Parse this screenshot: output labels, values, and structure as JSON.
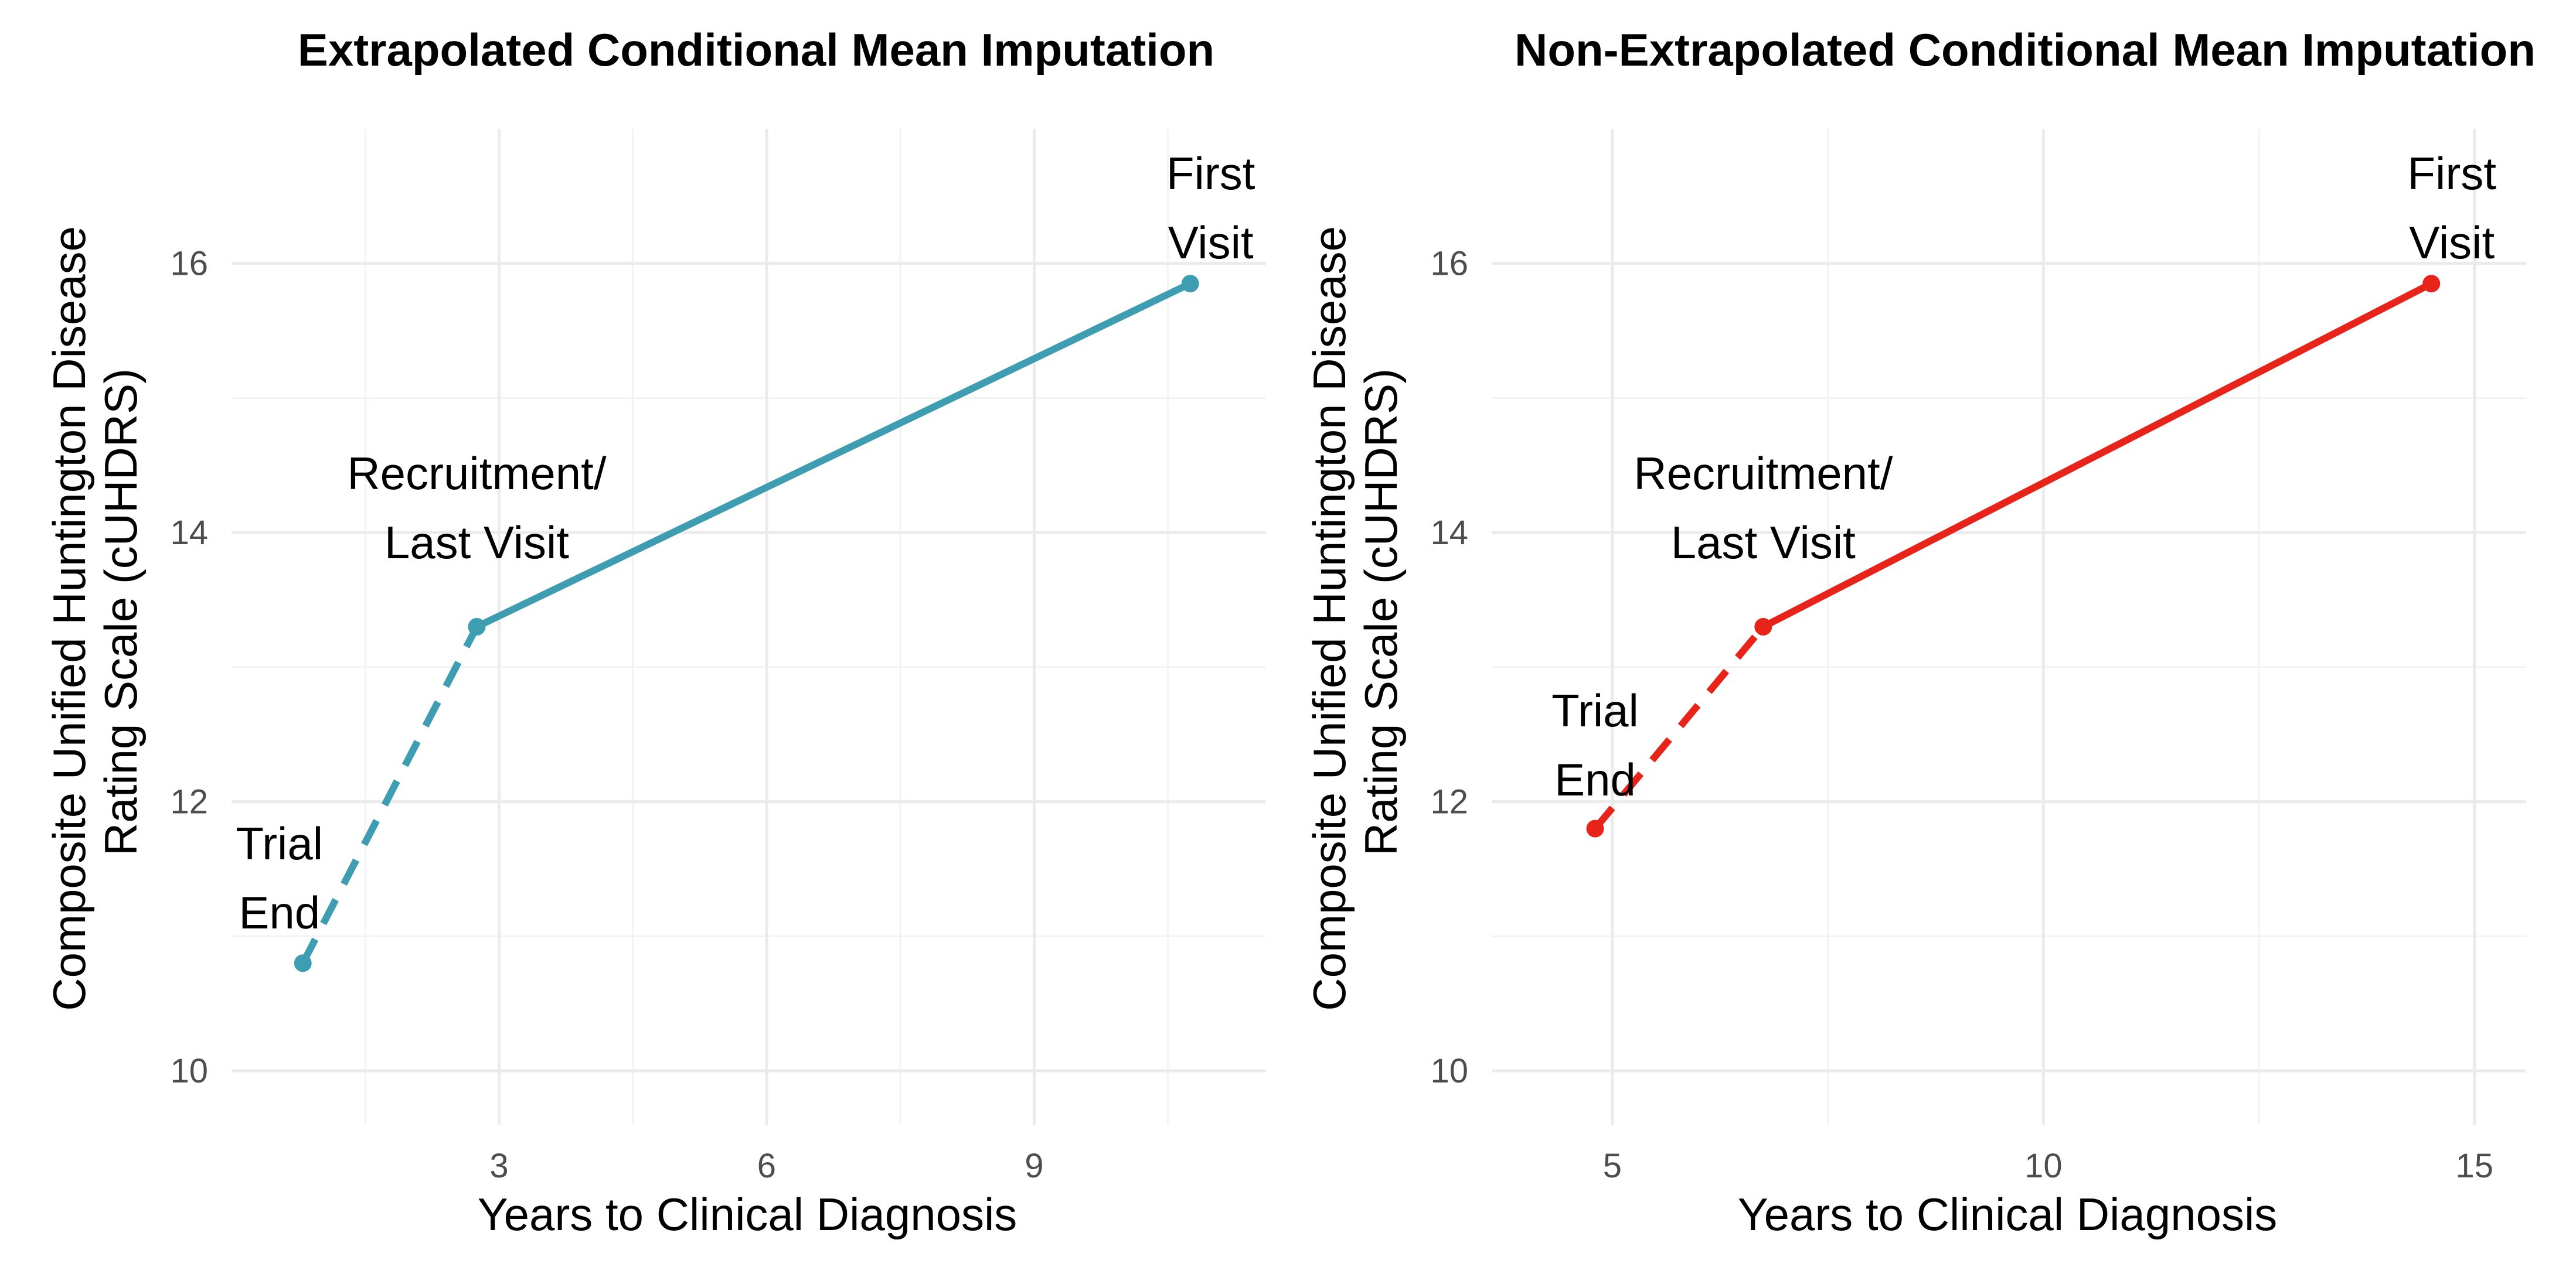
{
  "chart_data": [
    {
      "type": "line",
      "title": "Extrapolated Conditional Mean Imputation",
      "xlabel": "Years to Clinical Diagnosis",
      "ylabel": "Composite Unified Huntington Disease Rating Scale (cUHDRS)",
      "ylabel_lines": [
        "Composite Unified Huntington Disease",
        "Rating Scale (cUHDRS)"
      ],
      "xlim": [
        0.0,
        11.6
      ],
      "ylim": [
        9.6,
        17.0
      ],
      "x_ticks": [
        3,
        6,
        9
      ],
      "x_tick_labels": [
        "3",
        "6",
        "9"
      ],
      "x_minor_ticks": [
        1.5,
        4.5,
        7.5,
        10.5
      ],
      "y_ticks": [
        10,
        12,
        14,
        16
      ],
      "y_tick_labels": [
        "10",
        "12",
        "14",
        "16"
      ],
      "y_minor_ticks": [
        11,
        13,
        15
      ],
      "grid": true,
      "color": "#3E9DB1",
      "points": [
        {
          "x": 0.8,
          "y": 10.8,
          "label_lines": [
            "Trial",
            "End"
          ]
        },
        {
          "x": 2.75,
          "y": 13.3,
          "label_lines": [
            "Recruitment/",
            "Last Visit"
          ]
        },
        {
          "x": 10.75,
          "y": 15.85,
          "label_lines": [
            "First",
            "Visit"
          ]
        }
      ],
      "segments": [
        {
          "from": 0,
          "to": 1,
          "style": "dashed"
        },
        {
          "from": 1,
          "to": 2,
          "style": "solid"
        }
      ]
    },
    {
      "type": "line",
      "title": "Non-Extrapolated Conditional Mean Imputation",
      "xlabel": "Years to Clinical Diagnosis",
      "ylabel": "Composite Unified Huntington Disease Rating Scale (cUHDRS)",
      "ylabel_lines": [
        "Composite Unified Huntington Disease",
        "Rating Scale (cUHDRS)"
      ],
      "xlim": [
        3.6,
        15.6
      ],
      "ylim": [
        9.6,
        17.0
      ],
      "x_ticks": [
        5,
        10,
        15
      ],
      "x_tick_labels": [
        "5",
        "10",
        "15"
      ],
      "x_minor_ticks": [
        7.5,
        12.5
      ],
      "y_ticks": [
        10,
        12,
        14,
        16
      ],
      "y_tick_labels": [
        "10",
        "12",
        "14",
        "16"
      ],
      "y_minor_ticks": [
        11,
        13,
        15
      ],
      "grid": true,
      "color": "#E8231A",
      "points": [
        {
          "x": 4.8,
          "y": 11.8,
          "label_lines": [
            "Trial",
            "End"
          ]
        },
        {
          "x": 6.75,
          "y": 13.3,
          "label_lines": [
            "Recruitment/",
            "Last Visit"
          ]
        },
        {
          "x": 14.5,
          "y": 15.85,
          "label_lines": [
            "First",
            "Visit"
          ]
        }
      ],
      "segments": [
        {
          "from": 0,
          "to": 1,
          "style": "dashed"
        },
        {
          "from": 1,
          "to": 2,
          "style": "solid"
        }
      ]
    }
  ]
}
